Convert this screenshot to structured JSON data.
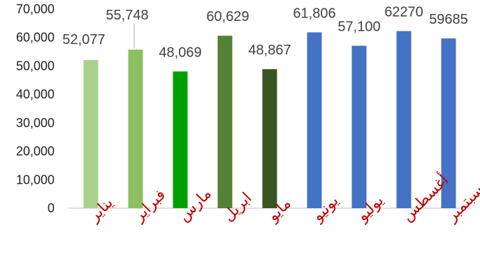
{
  "chart_data": {
    "type": "bar",
    "categories": [
      "يناير",
      "فبراير",
      "مارس",
      "ابريل",
      "مايو",
      "يونيو",
      "يوليو",
      "أغسطس",
      "سبتمبر"
    ],
    "values": [
      52077,
      55748,
      48069,
      60629,
      48867,
      61806,
      57100,
      62270,
      59685
    ],
    "data_labels": [
      "52,077",
      "55,748",
      "48,069",
      "60,629",
      "48,867",
      "61,806",
      "57,100",
      "62270",
      "59685"
    ],
    "bar_colors": [
      "#a9d18e",
      "#8bc063",
      "#00a000",
      "#548235",
      "#375623",
      "#4472c4",
      "#4472c4",
      "#4472c4",
      "#4472c4"
    ],
    "ylim": [
      0,
      70000
    ],
    "yticks": [
      0,
      10000,
      20000,
      30000,
      40000,
      50000,
      60000,
      70000
    ],
    "ytick_labels": [
      "0",
      "10,000",
      "20,000",
      "30,000",
      "40,000",
      "50,000",
      "60,000",
      "70,000"
    ],
    "category_label_color": "#c00000",
    "grid": false,
    "title": "",
    "xlabel": "",
    "ylabel": ""
  }
}
